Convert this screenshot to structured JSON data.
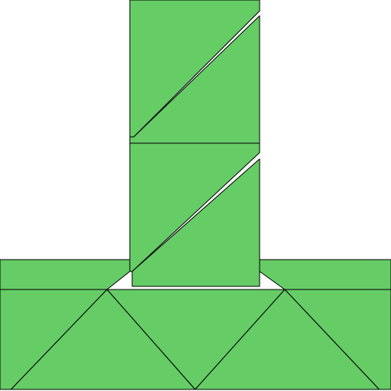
{
  "colors": {
    "fill": "#66cc66",
    "stroke": "#000000",
    "background": "#ffffff"
  },
  "pieces": [
    "square-top-left-triangle",
    "square-top-right-triangle",
    "square-middle-left-triangle",
    "square-middle-right-triangle",
    "base-left-panel",
    "base-right-panel",
    "base-left-triangle",
    "base-center-triangle",
    "base-right-triangle",
    "base-inner-left-triangle",
    "base-inner-right-triangle"
  ]
}
